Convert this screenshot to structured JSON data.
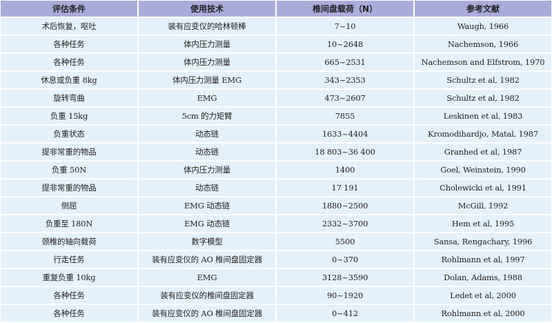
{
  "table": {
    "headers": [
      "评估条件",
      "使用技术",
      "椎间盘载荷（N）",
      "参考文献"
    ],
    "rows": [
      [
        "术后恢复，呕吐",
        "装有应变仪的哈林顿棒",
        "7~10",
        "Waugh, 1966"
      ],
      [
        "各种任务",
        "体内压力测量",
        "10~2648",
        "Nachemson, 1966"
      ],
      [
        "各种任务",
        "体内压力测量",
        "665~2531",
        "Nachemson and Elfstrom, 1970"
      ],
      [
        "休息或负重 8kg",
        "体内压力测量 EMG",
        "343~2353",
        "Schultz et al, 1982"
      ],
      [
        "旋转弯曲",
        "EMG",
        "473~2607",
        "Schultz et al, 1982"
      ],
      [
        "负重 15kg",
        "5cm 的力矩臂",
        "7855",
        "Leskinen et al, 1983"
      ],
      [
        "负重状态",
        "动态链",
        "1633~4404",
        "Kromodihardjo, Matal, 1987"
      ],
      [
        "提非常重的物品",
        "动态链",
        "18 803~36 400",
        "Granhed et al, 1987"
      ],
      [
        "负重 50N",
        "体内压力测量",
        "1400",
        "Goel, Weinstein, 1990"
      ],
      [
        "提非常重的物品",
        "动态链",
        "17 191",
        "Cholewicki et al, 1991"
      ],
      [
        "侧屈",
        "EMG 动态链",
        "1880~2500",
        "McGill, 1992"
      ],
      [
        "负重至 180N",
        "EMG 动态链",
        "2332~3700",
        "Hem et al, 1995"
      ],
      [
        "颈椎的轴向载荷",
        "数字模型",
        "5500",
        "Sansa, Rengachary, 1996"
      ],
      [
        "行走任务",
        "装有应变仪的 AO 椎间盘固定器",
        "0~370",
        "Rohlmann et al, 1997"
      ],
      [
        "重复负重 10kg",
        "EMG",
        "3128~3590",
        "Dolan, Adams, 1988"
      ],
      [
        "各种任务",
        "装有应变仪的椎间盘固定器",
        "90~1920",
        "Ledet et al, 2000"
      ],
      [
        "各种任务",
        "装有应变仪的 AO 椎间盘固定器",
        "0~412",
        "Rohlmann et al, 2000"
      ]
    ]
  },
  "colors": {
    "header_bg": "#a9acd9",
    "row_bg": "#e5f1fa"
  }
}
